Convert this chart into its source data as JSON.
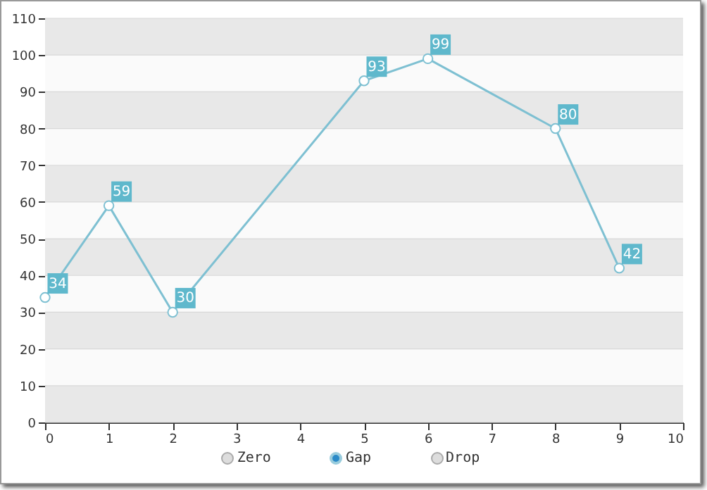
{
  "chart_data": {
    "type": "line",
    "x": [
      0,
      1,
      2,
      5,
      6,
      8,
      9
    ],
    "series": [
      {
        "color": "#7ec0d2",
        "values": [
          34,
          59,
          30,
          93,
          99,
          80,
          42
        ]
      }
    ],
    "xlim": [
      0,
      10
    ],
    "xticks": [
      0,
      1,
      2,
      3,
      4,
      5,
      6,
      7,
      8,
      9,
      10
    ],
    "ylim": [
      0,
      110
    ],
    "yticks": [
      0,
      10,
      20,
      30,
      40,
      50,
      60,
      70,
      80,
      90,
      100,
      110
    ],
    "grid": "y",
    "marker": "circle",
    "line_style": "solid",
    "data_labels": true,
    "annotations": [
      "Zero",
      "Gap",
      "Drop"
    ]
  }
}
